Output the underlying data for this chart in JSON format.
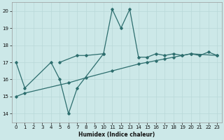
{
  "xlabel": "Humidex (Indice chaleur)",
  "bg_color": "#cce8e8",
  "line_color": "#2d6e6e",
  "grid_color": "#b8d8d8",
  "xlim": [
    -0.5,
    23.5
  ],
  "ylim": [
    13.5,
    20.5
  ],
  "yticks": [
    14,
    15,
    16,
    17,
    18,
    19,
    20
  ],
  "xticks": [
    0,
    1,
    2,
    3,
    4,
    5,
    6,
    7,
    8,
    9,
    10,
    11,
    12,
    13,
    14,
    15,
    16,
    17,
    18,
    19,
    20,
    21,
    22,
    23
  ],
  "series": [
    {
      "x": [
        0,
        1,
        4,
        5,
        6,
        7,
        10,
        11,
        12,
        13,
        14,
        15,
        16,
        17,
        18,
        19,
        20,
        21,
        22,
        23
      ],
      "y": [
        17.0,
        15.5,
        17.0,
        16.0,
        14.0,
        15.5,
        17.5,
        20.1,
        19.0,
        20.1,
        17.3,
        17.3,
        17.5,
        17.4,
        17.5,
        17.4,
        17.5,
        17.4,
        17.6,
        17.4
      ]
    },
    {
      "x": [
        5,
        7,
        8,
        10
      ],
      "y": [
        17.0,
        17.4,
        17.4,
        17.5
      ]
    },
    {
      "x": [
        0,
        1,
        6,
        8,
        11,
        14,
        15,
        16,
        17,
        18,
        19,
        20,
        23
      ],
      "y": [
        15.0,
        15.2,
        15.8,
        16.1,
        16.5,
        16.9,
        17.0,
        17.1,
        17.2,
        17.3,
        17.4,
        17.5,
        17.4
      ]
    }
  ]
}
